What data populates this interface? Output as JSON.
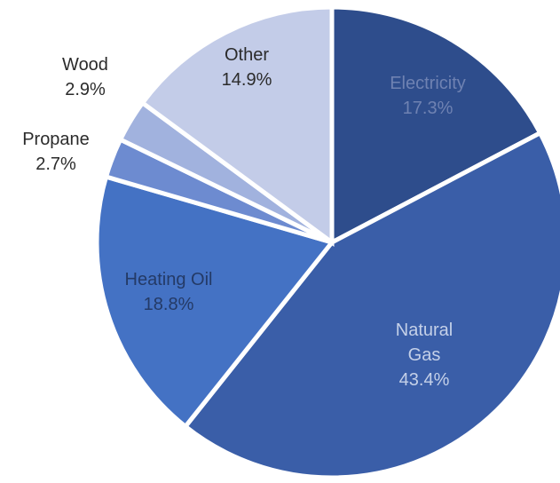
{
  "chart_data": {
    "type": "pie",
    "slices": [
      {
        "name": "Electricity",
        "value": 17.3,
        "label_lines": [
          "Electricity",
          "17.3%"
        ],
        "color": "#2e4d8c",
        "text_color": "#6f82b2"
      },
      {
        "name": "Natural Gas",
        "value": 43.4,
        "label_lines": [
          "Natural",
          "Gas",
          "43.4%"
        ],
        "color": "#3a5ea8",
        "text_color": "#c4d0e8"
      },
      {
        "name": "Heating Oil",
        "value": 18.8,
        "label_lines": [
          "Heating Oil",
          "18.8%"
        ],
        "color": "#4472c4",
        "text_color": "#243a66"
      },
      {
        "name": "Propane",
        "value": 2.7,
        "label_lines": [
          "Propane",
          "2.7%"
        ],
        "color": "#6d8bd0",
        "text_color": "#2b2b2b"
      },
      {
        "name": "Wood",
        "value": 2.9,
        "label_lines": [
          "Wood",
          "2.9%"
        ],
        "color": "#a1b2de",
        "text_color": "#2b2b2b"
      },
      {
        "name": "Other",
        "value": 14.9,
        "label_lines": [
          "Other",
          "14.9%"
        ],
        "color": "#c3cce8",
        "text_color": "#2b2b2b"
      }
    ],
    "start_angle_deg": 0,
    "direction": "clockwise"
  }
}
